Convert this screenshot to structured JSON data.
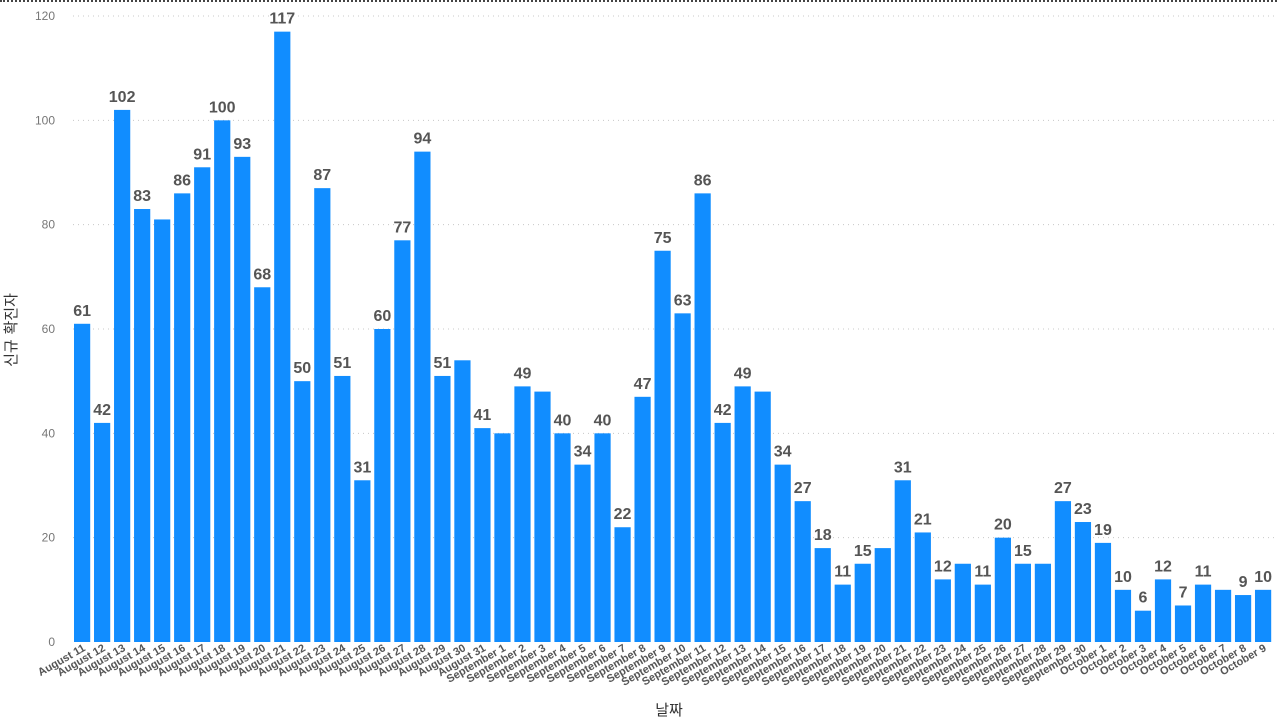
{
  "chart_data": {
    "type": "bar",
    "title": "",
    "xlabel": "날짜",
    "ylabel": "신규 확진자",
    "ylim": [
      0,
      120
    ],
    "yticks": [
      0,
      20,
      40,
      60,
      80,
      100,
      120
    ],
    "grid": true,
    "bar_color": "#118dff",
    "categories": [
      "August 11",
      "August 12",
      "August 13",
      "August 14",
      "August 15",
      "August 16",
      "August 17",
      "August 18",
      "August 19",
      "August 20",
      "August 21",
      "August 22",
      "August 23",
      "August 24",
      "August 25",
      "August 26",
      "August 27",
      "August 28",
      "August 29",
      "August 30",
      "August 31",
      "September 1",
      "September 2",
      "September 3",
      "September 4",
      "September 5",
      "September 6",
      "September 7",
      "September 8",
      "September 9",
      "September 10",
      "September 11",
      "September 12",
      "September 13",
      "September 14",
      "September 15",
      "September 16",
      "September 17",
      "September 18",
      "September 19",
      "September 20",
      "September 21",
      "September 22",
      "September 23",
      "September 24",
      "September 25",
      "September 26",
      "September 27",
      "September 28",
      "September 29",
      "September 30",
      "October 1",
      "October 2",
      "October 3",
      "October 4",
      "October 5",
      "October 6",
      "October 7",
      "October 8",
      "October 9"
    ],
    "values": [
      61,
      42,
      102,
      83,
      81,
      86,
      91,
      100,
      93,
      68,
      117,
      50,
      87,
      51,
      31,
      60,
      77,
      94,
      51,
      54,
      41,
      40,
      49,
      48,
      40,
      34,
      40,
      22,
      47,
      75,
      63,
      86,
      42,
      49,
      48,
      34,
      27,
      18,
      11,
      15,
      18,
      31,
      21,
      12,
      15,
      11,
      20,
      15,
      15,
      27,
      23,
      19,
      10,
      6,
      12,
      7,
      11,
      10,
      9,
      10
    ],
    "data_labels": [
      "61",
      "42",
      "102",
      "83",
      "",
      "86",
      "91",
      "100",
      "93",
      "68",
      "117",
      "50",
      "87",
      "51",
      "31",
      "60",
      "77",
      "94",
      "51",
      "",
      "41",
      "",
      "49",
      "",
      "40",
      "34",
      "40",
      "22",
      "47",
      "75",
      "63",
      "86",
      "42",
      "49",
      "",
      "34",
      "27",
      "18",
      "11",
      "15",
      "",
      "31",
      "21",
      "12",
      "",
      "11",
      "20",
      "15",
      "",
      "27",
      "23",
      "19",
      "10",
      "6",
      "12",
      "7",
      "11",
      "",
      "9",
      "10"
    ]
  }
}
